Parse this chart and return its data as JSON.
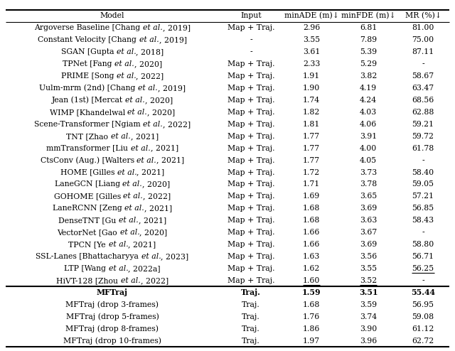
{
  "columns": [
    "Model",
    "Input",
    "minADE (m)↓",
    "minFDE (m)↓",
    "MR (%)↓"
  ],
  "rows": [
    [
      "Argoverse Baseline [Chang ",
      "et al.",
      ", 2019]",
      "Map + Traj.",
      "2.96",
      "6.81",
      "81.00",
      false,
      false,
      false
    ],
    [
      "Constant Velocity [Chang ",
      "et al.",
      ", 2019]",
      "-",
      "3.55",
      "7.89",
      "75.00",
      false,
      false,
      false
    ],
    [
      "SGAN [Gupta ",
      "et al.",
      ", 2018]",
      "-",
      "3.61",
      "5.39",
      "87.11",
      false,
      false,
      false
    ],
    [
      "TPNet [Fang ",
      "et al.",
      ", 2020]",
      "Map + Traj.",
      "2.33",
      "5.29",
      "-",
      false,
      false,
      false
    ],
    [
      "PRIME [Song ",
      "et al.",
      ", 2022]",
      "Map + Traj.",
      "1.91",
      "3.82",
      "58.67",
      false,
      false,
      false
    ],
    [
      "Uulm-mrm (2nd) [Chang ",
      "et al.",
      ", 2019]",
      "Map + Traj.",
      "1.90",
      "4.19",
      "63.47",
      false,
      false,
      false
    ],
    [
      "Jean (1st) [Mercat ",
      "et al.",
      ", 2020]",
      "Map + Traj.",
      "1.74",
      "4.24",
      "68.56",
      false,
      false,
      false
    ],
    [
      "WIMP [Khandelwal ",
      "et al.",
      ", 2020]",
      "Map + Traj.",
      "1.82",
      "4.03",
      "62.88",
      false,
      false,
      false
    ],
    [
      "Scene-Transformer [Ngiam ",
      "et al.",
      ", 2022]",
      "Map + Traj.",
      "1.81",
      "4.06",
      "59.21",
      false,
      false,
      false
    ],
    [
      "TNT [Zhao ",
      "et al.",
      ", 2021]",
      "Map + Traj.",
      "1.77",
      "3.91",
      "59.72",
      false,
      false,
      false
    ],
    [
      "mmTransformer [Liu ",
      "et al.",
      ", 2021]",
      "Map + Traj.",
      "1.77",
      "4.00",
      "61.78",
      false,
      false,
      false
    ],
    [
      "CtsConv (Aug.) [Walters ",
      "et al.",
      ", 2021]",
      "Map + Traj.",
      "1.77",
      "4.05",
      "-",
      false,
      false,
      false
    ],
    [
      "HOME [Gilles ",
      "et al.",
      ", 2021]",
      "Map + Traj.",
      "1.72",
      "3.73",
      "58.40",
      false,
      false,
      false
    ],
    [
      "LaneGCN [Liang ",
      "et al.",
      ", 2020]",
      "Map + Traj.",
      "1.71",
      "3.78",
      "59.05",
      false,
      false,
      false
    ],
    [
      "GOHOME [Gilles ",
      "et al.",
      ", 2022]",
      "Map + Traj.",
      "1.69",
      "3.65",
      "57.21",
      false,
      false,
      false
    ],
    [
      "LaneRCNN [Zeng ",
      "et al.",
      ", 2021]",
      "Map + Traj.",
      "1.68",
      "3.69",
      "56.85",
      false,
      false,
      false
    ],
    [
      "DenseTNT [Gu ",
      "et al.",
      ", 2021]",
      "Map + Traj.",
      "1.68",
      "3.63",
      "58.43",
      false,
      false,
      false
    ],
    [
      "VectorNet [Gao ",
      "et al.",
      ", 2020]",
      "Map + Traj.",
      "1.66",
      "3.67",
      "-",
      false,
      false,
      false
    ],
    [
      "TPCN [Ye ",
      "et al.",
      ", 2021]",
      "Map + Traj.",
      "1.66",
      "3.69",
      "58.80",
      false,
      false,
      false
    ],
    [
      "SSL-Lanes [Bhattacharyya ",
      "et al.",
      ", 2023]",
      "Map + Traj.",
      "1.63",
      "3.56",
      "56.71",
      false,
      false,
      false
    ],
    [
      "LTP [Wang ",
      "et al.",
      ", 2022a]",
      "Map + Traj.",
      "1.62",
      "3.55",
      "56.25",
      false,
      false,
      true
    ],
    [
      "HiVT-128 [Zhou ",
      "et al.",
      ", 2022]",
      "Map + Traj.",
      "1.60",
      "3.52",
      "-",
      true,
      true,
      false
    ]
  ],
  "mftraj_rows": [
    [
      "MFTraj",
      "Traj.",
      "1.59",
      "3.51",
      "55.44",
      true
    ],
    [
      "MFTraj (drop 3-frames)",
      "Traj.",
      "1.68",
      "3.59",
      "56.95",
      false
    ],
    [
      "MFTraj (drop 5-frames)",
      "Traj.",
      "1.76",
      "3.74",
      "59.08",
      false
    ],
    [
      "MFTraj (drop 8-frames)",
      "Traj.",
      "1.86",
      "3.90",
      "61.12",
      false
    ],
    [
      "MFTraj (drop 10-frames)",
      "Traj.",
      "1.97",
      "3.96",
      "62.72",
      false
    ]
  ],
  "figsize": [
    6.4,
    4.94
  ],
  "dpi": 100,
  "font_size": 7.8,
  "bg_color": "#ffffff"
}
